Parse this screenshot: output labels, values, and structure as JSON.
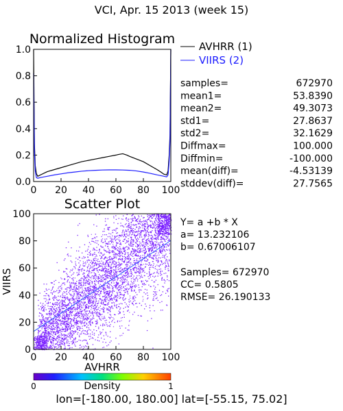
{
  "header": {
    "title": "VCI,  Apr. 15 2013 (week 15)"
  },
  "footer": {
    "text": "lon=[-180.00, 180.00] lat=[-55.15, 75.02]"
  },
  "colors": {
    "avhrr_line": "#000000",
    "viirs_line": "#1a1aff",
    "regression_line": "#2a5bff",
    "scatter_fill": "#7a1fff"
  },
  "chart_data": [
    {
      "type": "line",
      "title": "Normalized Histogram",
      "xlim": [
        0,
        100
      ],
      "ylim": [
        0.0,
        1.0
      ],
      "x_ticks": [
        "0",
        "20",
        "40",
        "60",
        "80",
        "100"
      ],
      "y_ticks": [
        "0.0",
        "0.2",
        "0.4",
        "0.6",
        "0.8",
        "1.0"
      ],
      "series": [
        {
          "name": "AVHRR (1)",
          "color": "#000000",
          "x": [
            0,
            0.6,
            1.2,
            2,
            3,
            4,
            6,
            8,
            10,
            15,
            20,
            25,
            30,
            35,
            40,
            45,
            50,
            55,
            60,
            62,
            65,
            68,
            70,
            75,
            80,
            85,
            90,
            93,
            95,
            97,
            98,
            98.8,
            99.4,
            100
          ],
          "y": [
            1.0,
            0.28,
            0.12,
            0.06,
            0.04,
            0.045,
            0.055,
            0.065,
            0.075,
            0.09,
            0.105,
            0.12,
            0.135,
            0.15,
            0.16,
            0.17,
            0.18,
            0.19,
            0.2,
            0.205,
            0.21,
            0.2,
            0.19,
            0.17,
            0.15,
            0.12,
            0.09,
            0.07,
            0.055,
            0.05,
            0.08,
            0.2,
            0.35,
            1.0
          ]
        },
        {
          "name": "VIIRS (2)",
          "color": "#1a1aff",
          "x": [
            0,
            0.6,
            1.2,
            2,
            3,
            5,
            10,
            15,
            20,
            25,
            30,
            35,
            40,
            45,
            50,
            55,
            60,
            65,
            70,
            75,
            80,
            85,
            90,
            95,
            97,
            98,
            98.8,
            99.4,
            100
          ],
          "y": [
            0.82,
            0.22,
            0.08,
            0.03,
            0.025,
            0.03,
            0.04,
            0.05,
            0.058,
            0.066,
            0.072,
            0.078,
            0.082,
            0.085,
            0.087,
            0.088,
            0.088,
            0.087,
            0.085,
            0.08,
            0.072,
            0.062,
            0.05,
            0.04,
            0.035,
            0.05,
            0.15,
            0.3,
            1.0
          ]
        }
      ]
    },
    {
      "type": "scatter",
      "title": "Scatter Plot",
      "xlabel": "AVHRR",
      "ylabel": "VIIRS",
      "xlim": [
        0,
        100
      ],
      "ylim": [
        0,
        100
      ],
      "x_ticks": [
        "0",
        "20",
        "40",
        "60",
        "80",
        "100"
      ],
      "y_ticks": [
        "0",
        "20",
        "40",
        "60",
        "80",
        "100"
      ],
      "regression": {
        "a": 13.232106,
        "b": 0.67006107
      },
      "colorbar": {
        "label": "Density",
        "min_label": "0",
        "max_label": "1"
      }
    }
  ],
  "stats": {
    "rows": [
      {
        "label": "samples=",
        "value": "672970"
      },
      {
        "label": "mean1=",
        "value": "53.8390"
      },
      {
        "label": "mean2=",
        "value": "49.3073"
      },
      {
        "label": "std1=",
        "value": "27.8637"
      },
      {
        "label": "std2=",
        "value": "32.1629"
      },
      {
        "label": "Diffmax=",
        "value": "100.000"
      },
      {
        "label": "Diffmin=",
        "value": "-100.000"
      },
      {
        "label": "mean(diff)=",
        "value": "-4.53139"
      },
      {
        "label": "stddev(diff)=",
        "value": "27.7565"
      }
    ]
  },
  "regression_text": {
    "equation": "Y= a +b * X",
    "a_line": "a= 13.232106",
    "b_line": "b= 0.67006107",
    "samples_line": "Samples= 672970",
    "cc_line": "CC=  0.5805",
    "rmse_line": "RMSE= 26.190133"
  }
}
